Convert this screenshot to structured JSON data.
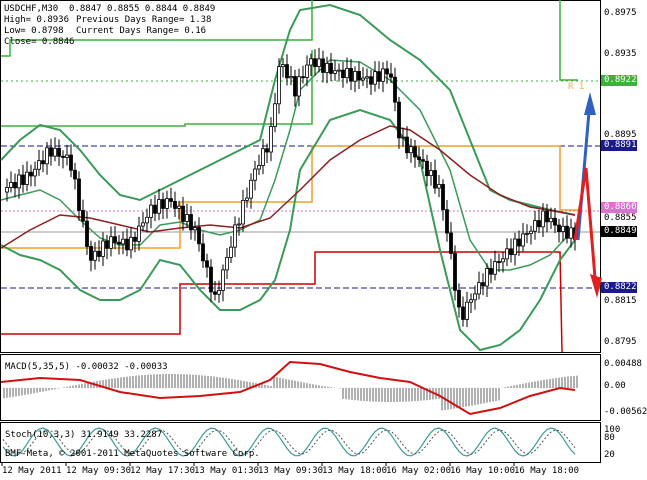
{
  "header": {
    "symbol_line": "USDCHF,M30  0.8847 0.8855 0.8844 0.8849",
    "high": "High= 0.8936",
    "low": "Low= 0.8798",
    "close": "Close= 0.8846",
    "prev_range": "Previous Days Range= 1.38",
    "curr_range": "Current Days Range= 0.16"
  },
  "price_axis": [
    "0.8975",
    "0.8935",
    "0.8895",
    "0.8855",
    "0.8815",
    "0.8795"
  ],
  "price_tags": {
    "r1": "0.8922",
    "blue": "0.8891",
    "pink": "0.8860",
    "current": "0.8849",
    "dark_blue": "0.8822"
  },
  "r1_label": "R 1",
  "macd": {
    "title": "MACD(5,35,5) -0.00032 -0.00033",
    "axis": [
      "0.00488",
      "0.00",
      "-0.00562"
    ]
  },
  "stoch": {
    "title": "Stoch(10,3,3) 31.9149 33.2287",
    "axis": [
      "100",
      "80",
      "20"
    ]
  },
  "time_axis": [
    "12 May 2011",
    "12 May 09:30",
    "12 May 17:30",
    "13 May 01:30",
    "13 May 09:30",
    "13 May 18:00",
    "16 May 02:00",
    "16 May 10:00",
    "16 May 18:00"
  ],
  "copyright": "BMF-Meta, © 2001-2011 MetaQuotes Software Corp.",
  "colors": {
    "bollinger": "#3a9a58",
    "ma": "#8b2020",
    "candle": "#000000",
    "level_green": "#3cb23c",
    "level_orange": "#f0a020",
    "level_red": "#cc0000",
    "arrow_blue": "#3060c0",
    "arrow_red": "#e02020",
    "macd_hist": "#b0b0b0",
    "macd_signal": "#d01010",
    "stoch_main": "#3a9a9a"
  }
}
